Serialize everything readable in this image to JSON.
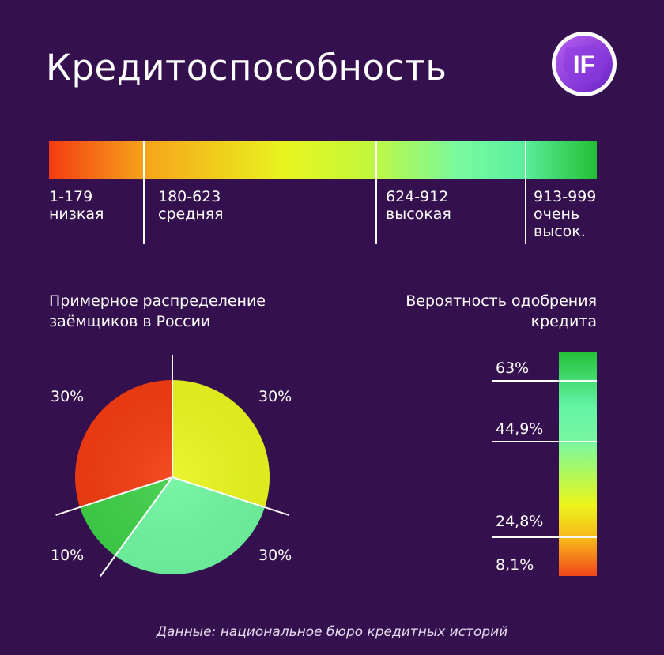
{
  "header": {
    "title": "Кредитоспособность",
    "logo_text": "IF"
  },
  "scale": {
    "segments": [
      {
        "range": "1-179",
        "label": "низкая"
      },
      {
        "range": "180-623",
        "label": "средняя"
      },
      {
        "range": "624-912",
        "label": "высокая"
      },
      {
        "range": "913-999",
        "label_line1": "очень",
        "label_line2": "высок."
      }
    ]
  },
  "distribution": {
    "title_line1": "Примерное распределение",
    "title_line2": "заёмщиков в России"
  },
  "approval": {
    "title_line1": "Вероятность одобрения",
    "title_line2": "кредита"
  },
  "chart_data": [
    {
      "type": "pie",
      "title": "Примерное распределение заёмщиков в России",
      "slices": [
        {
          "label": "1-179 низкая",
          "value": 30,
          "value_label": "30%",
          "color": "#f23c12"
        },
        {
          "label": "180-623 средняя",
          "value": 30,
          "value_label": "30%",
          "color": "#e9f51f"
        },
        {
          "label": "624-912 высокая",
          "value": 30,
          "value_label": "30%",
          "color": "#6ff5a0"
        },
        {
          "label": "913-999 очень высок.",
          "value": 10,
          "value_label": "10%",
          "color": "#3fcf48"
        }
      ]
    },
    {
      "type": "bar",
      "title": "Вероятность одобрения кредита",
      "categories": [
        "1-179",
        "180-623",
        "624-912",
        "913-999"
      ],
      "values": [
        8.1,
        24.8,
        44.9,
        63
      ],
      "value_labels": [
        "8,1%",
        "24,8%",
        "44,9%",
        "63%"
      ]
    }
  ],
  "source": "Данные: национальное бюро кредитных историй"
}
